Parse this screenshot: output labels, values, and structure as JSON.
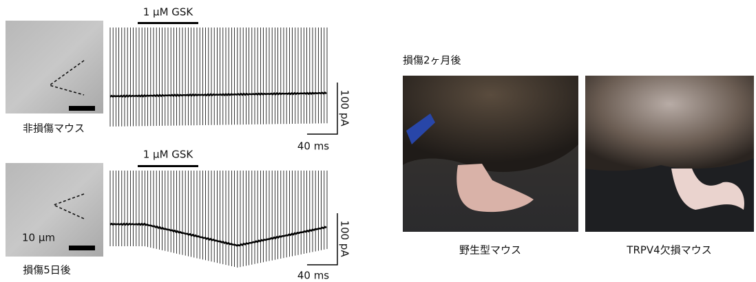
{
  "panels": [
    {
      "label": "非損傷マウス",
      "drug": "1 μM GSK",
      "scale_y": "100 pA",
      "scale_x": "40 ms"
    },
    {
      "label": "損傷5日後",
      "drug": "1 μM GSK",
      "scale_y": "100 pA",
      "scale_x": "40 ms",
      "image_scale": "10 μm"
    }
  ],
  "photos": {
    "title": "損傷2ヶ月後",
    "captions": [
      "野生型マウス",
      "TRPV4欠損マウス"
    ]
  }
}
